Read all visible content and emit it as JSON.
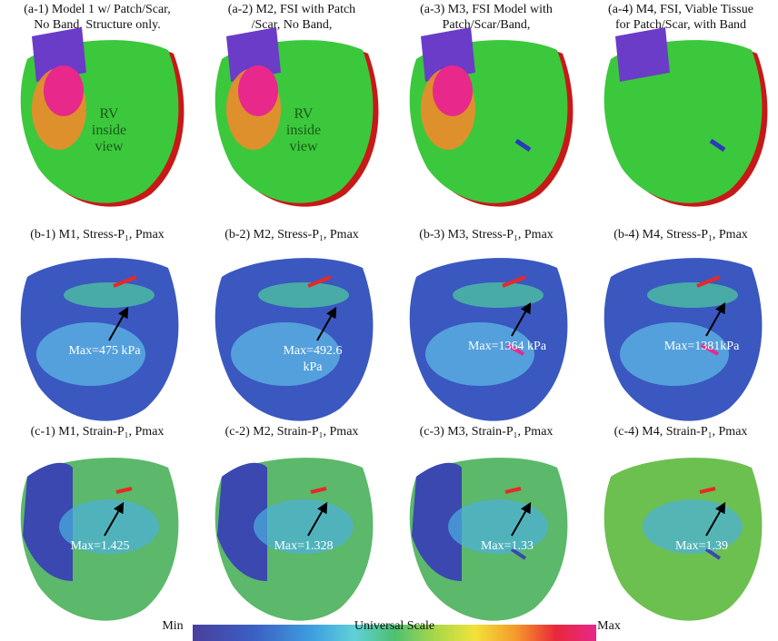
{
  "panels": [
    {
      "caption": [
        "(a-1)  Model  1 w/  Patch/Scar,",
        "No Band, Structure only."
      ],
      "note": [
        "RV",
        "inside",
        "view"
      ]
    },
    {
      "caption": [
        "(a-2)  M2, FSI  with Patch",
        "/Scar,  No Band,"
      ],
      "note": [
        "RV",
        "inside",
        "view"
      ]
    },
    {
      "caption": [
        "(a-3)  M3, FSI Model with",
        "Patch/Scar/Band,"
      ],
      "note": []
    },
    {
      "caption": [
        "(a-4)  M4, FSI, Viable Tissue",
        "for Patch/Scar, with Band"
      ],
      "note": []
    },
    {
      "caption": [
        "(b-1)  M1, Stress-P₁, Pmax"
      ],
      "note": [
        "Max=475 kPa"
      ]
    },
    {
      "caption": [
        "(b-2)  M2, Stress-P₁, Pmax"
      ],
      "note": [
        "Max=492.6",
        "kPa"
      ]
    },
    {
      "caption": [
        "(b-3)  M3, Stress-P₁, Pmax"
      ],
      "note": [
        "Max=1364 kPa"
      ]
    },
    {
      "caption": [
        "(b-4)  M4, Stress-P₁, Pmax"
      ],
      "note": [
        "Max=1381kPa"
      ]
    },
    {
      "caption": [
        "(c-1)  M1, Strain-P₁, Pmax"
      ],
      "note": [
        "Max=1.425"
      ]
    },
    {
      "caption": [
        "(c-2)  M2, Strain-P₁, Pmax"
      ],
      "note": [
        "Max=1.328"
      ]
    },
    {
      "caption": [
        "(c-3)  M3, Strain-P₁, Pmax"
      ],
      "note": [
        "Max=1.33"
      ]
    },
    {
      "caption": [
        "(c-4)  M4, Strain-P₁, Pmax"
      ],
      "note": [
        "Max=1.39"
      ]
    }
  ],
  "scale": {
    "min": "Min",
    "title": "Universal Scale",
    "max": "Max"
  }
}
